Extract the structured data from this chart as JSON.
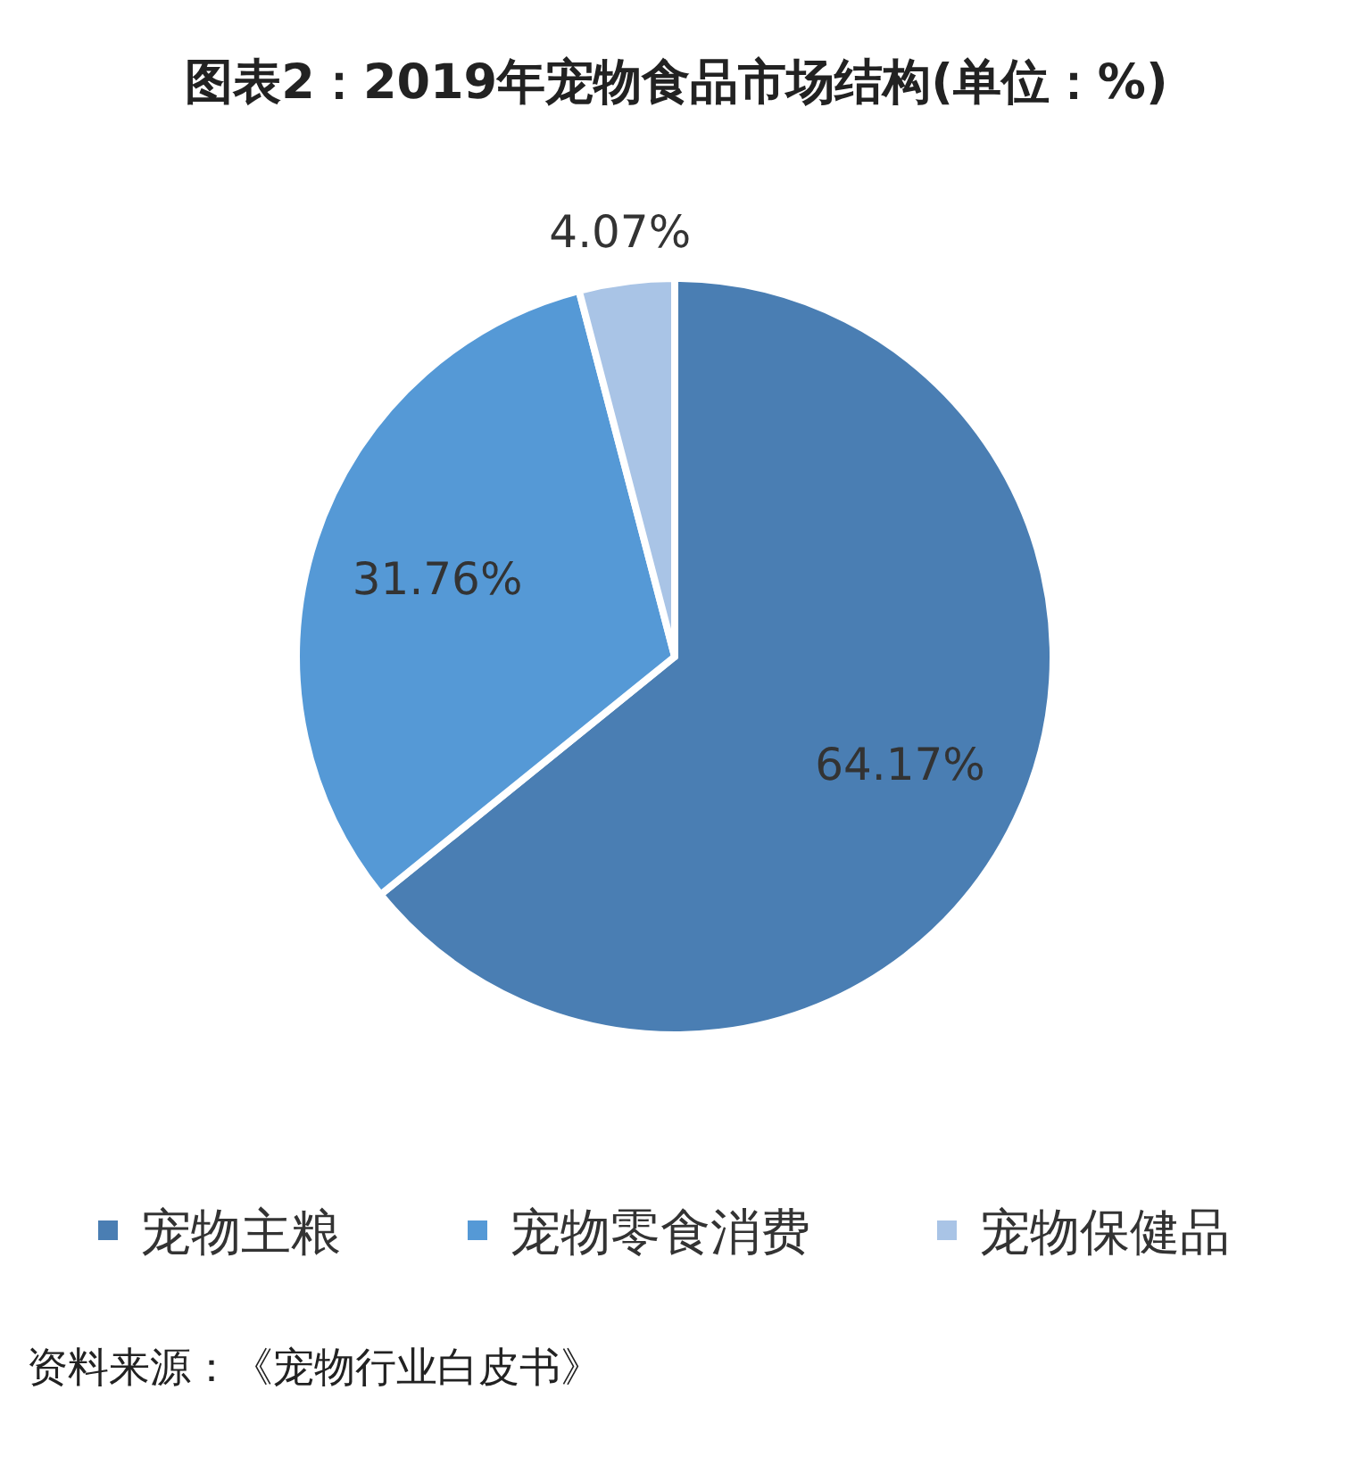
{
  "chart_data": {
    "type": "pie",
    "title": "图表2：2019年宠物食品市场结构(单位：%)",
    "categories": [
      "宠物主粮",
      "宠物零食消费",
      "宠物保健品"
    ],
    "values": [
      64.17,
      31.76,
      4.07
    ],
    "colors": [
      "#4a7eb3",
      "#5599d6",
      "#a9c4e6"
    ],
    "value_labels": [
      "64.17%",
      "31.76%",
      "4.07%"
    ],
    "legend": "bottom",
    "annotations": [
      "资料来源：《宠物行业白皮书》"
    ]
  }
}
